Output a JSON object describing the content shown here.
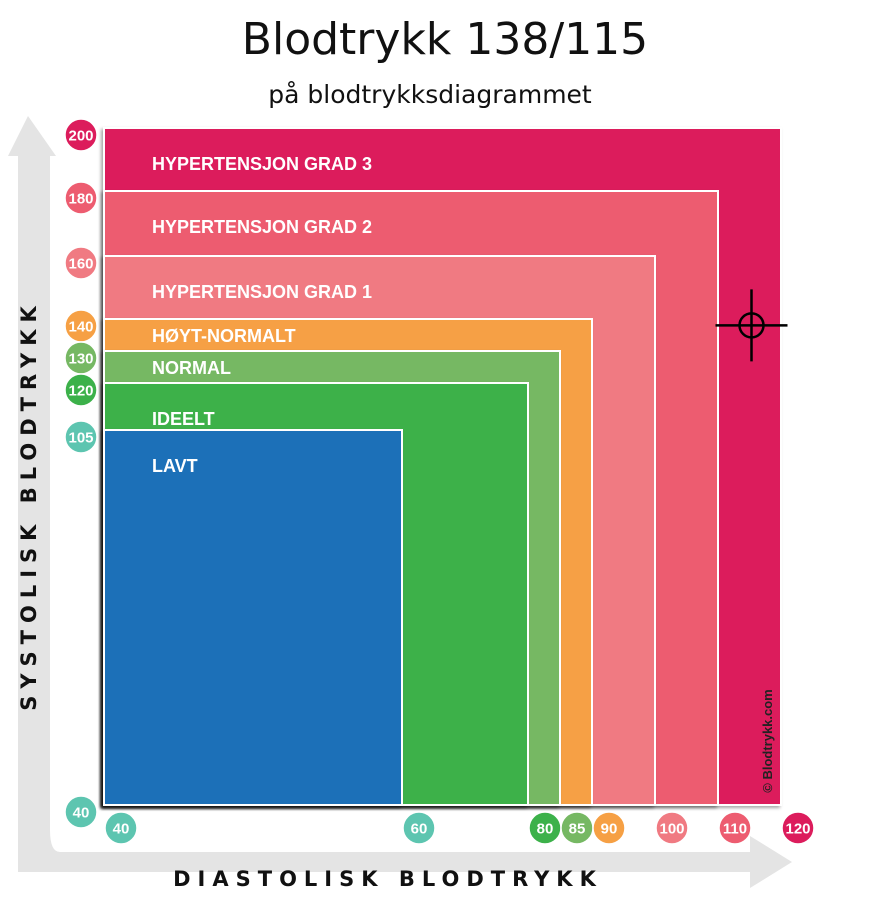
{
  "title": "Blodtrykk 138/115",
  "subtitle": "på blodtrykksdiagrammet",
  "credit": "© Blodtrykk.com",
  "chart_data": {
    "type": "area",
    "xlabel": "DIASTOLISK BLODTRYKK",
    "ylabel": "SYSTOLISK BLODTRYKK",
    "zones": [
      {
        "name": "HYPERTENSJON GRAD 3",
        "x_max": 120,
        "y_max": 200,
        "color": "#dc1c5c"
      },
      {
        "name": "HYPERTENSJON GRAD 2",
        "x_max": 110,
        "y_max": 180,
        "color": "#ed5c70"
      },
      {
        "name": "HYPERTENSJON GRAD 1",
        "x_max": 100,
        "y_max": 160,
        "color": "#f07a82"
      },
      {
        "name": "HØYT-NORMALT",
        "x_max": 90,
        "y_max": 140,
        "color": "#f6a044"
      },
      {
        "name": "NORMAL",
        "x_max": 85,
        "y_max": 130,
        "color": "#76b863"
      },
      {
        "name": "IDEELT",
        "x_max": 80,
        "y_max": 120,
        "color": "#3cb14a"
      },
      {
        "name": "LAVT",
        "x_max": 60,
        "y_max": 105,
        "color": "#1c70b8"
      }
    ],
    "x_ticks": [
      {
        "value": 40,
        "label": "40",
        "color": "#5dc5b0"
      },
      {
        "value": 60,
        "label": "60",
        "color": "#5dc5b0"
      },
      {
        "value": 80,
        "label": "80",
        "color": "#3cb14a"
      },
      {
        "value": 85,
        "label": "85",
        "color": "#76b863"
      },
      {
        "value": 90,
        "label": "90",
        "color": "#f6a044"
      },
      {
        "value": 100,
        "label": "100",
        "color": "#f07a82"
      },
      {
        "value": 110,
        "label": "110",
        "color": "#ed5c70"
      },
      {
        "value": 120,
        "label": "120",
        "color": "#dc1c5c"
      }
    ],
    "y_ticks": [
      {
        "value": 200,
        "label": "200",
        "color": "#dc1c5c"
      },
      {
        "value": 180,
        "label": "180",
        "color": "#ed5c70"
      },
      {
        "value": 160,
        "label": "160",
        "color": "#f07a82"
      },
      {
        "value": 140,
        "label": "140",
        "color": "#f6a044"
      },
      {
        "value": 130,
        "label": "130",
        "color": "#76b863"
      },
      {
        "value": 120,
        "label": "120",
        "color": "#3cb14a"
      },
      {
        "value": 105,
        "label": "105",
        "color": "#5dc5b0"
      },
      {
        "value": 40,
        "label": "40",
        "color": "#5dc5b0"
      }
    ],
    "marker": {
      "x": 115,
      "y": 138
    }
  }
}
